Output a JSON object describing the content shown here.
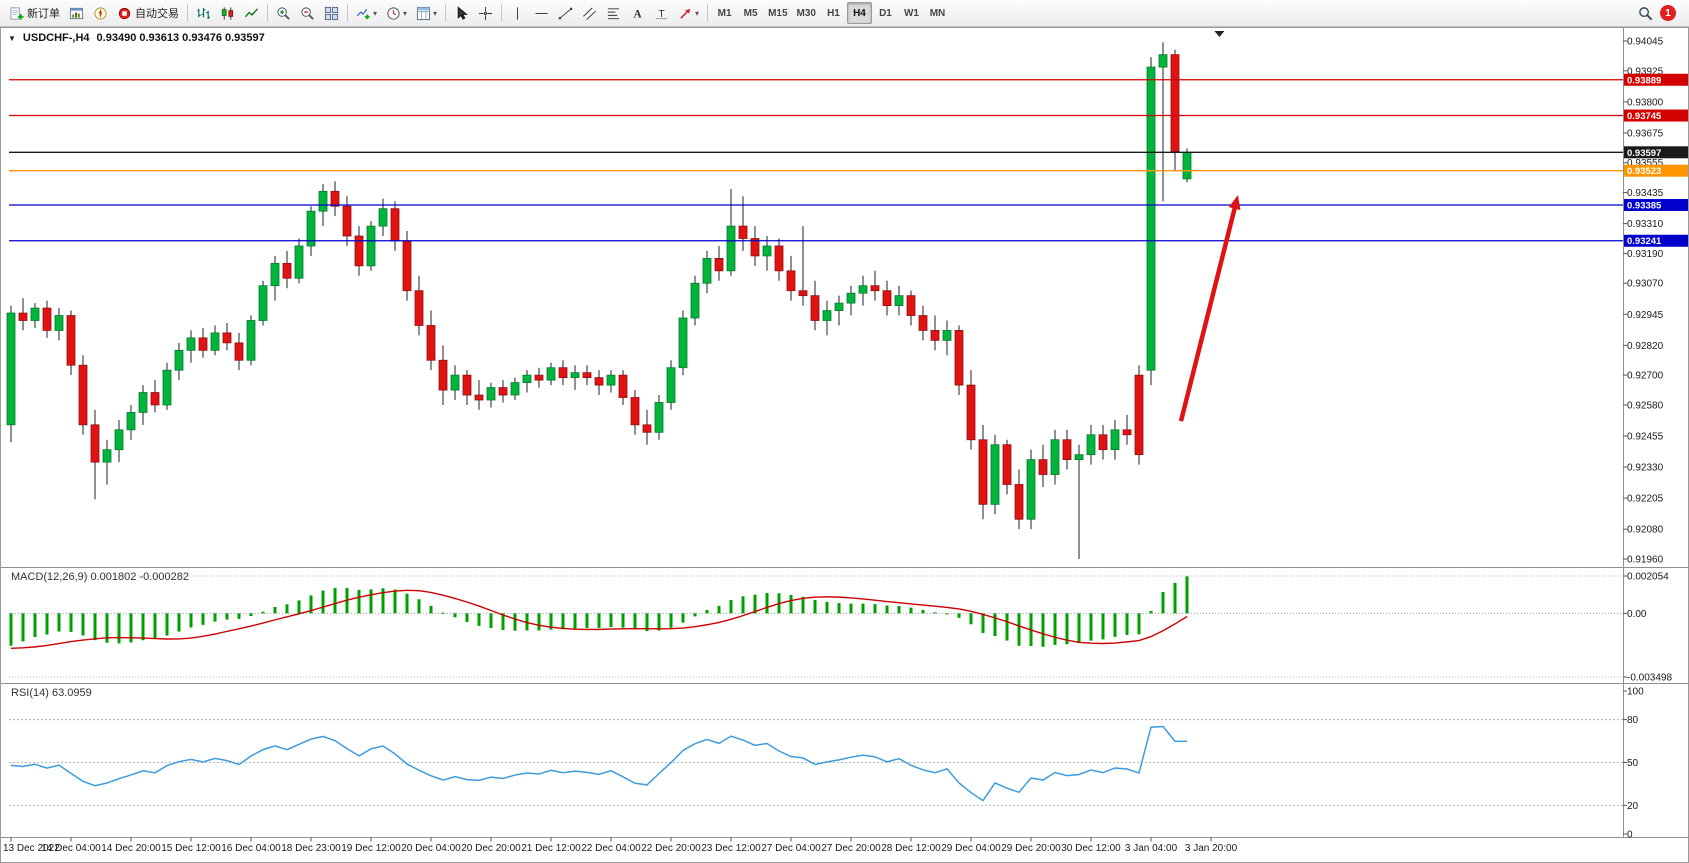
{
  "toolbar": {
    "items": [
      {
        "type": "button",
        "name": "new-order-button",
        "icon": "new-order-icon",
        "label": "新订单"
      },
      {
        "type": "button",
        "name": "charts-button",
        "icon": "charts-icon"
      },
      {
        "type": "button",
        "name": "navigator-button",
        "icon": "navigator-icon"
      },
      {
        "type": "button",
        "name": "autotrading-button",
        "icon": "autotrading-icon",
        "label": "自动交易"
      },
      {
        "type": "sep"
      },
      {
        "type": "button",
        "name": "bar-chart-button",
        "icon": "bar-chart-icon"
      },
      {
        "type": "button",
        "name": "candlestick-button",
        "icon": "candlestick-icon"
      },
      {
        "type": "button",
        "name": "line-chart-button",
        "icon": "line-chart-icon"
      },
      {
        "type": "sep"
      },
      {
        "type": "button",
        "name": "zoom-in-button",
        "icon": "zoom-in-icon"
      },
      {
        "type": "button",
        "name": "zoom-out-button",
        "icon": "zoom-out-icon"
      },
      {
        "type": "button",
        "name": "tile-windows-button",
        "icon": "tile-windows-icon"
      },
      {
        "type": "sep"
      },
      {
        "type": "button",
        "name": "indicators-button",
        "icon": "indicators-icon",
        "dropdown": true
      },
      {
        "type": "button",
        "name": "periods-button",
        "icon": "periods-icon",
        "dropdown": true
      },
      {
        "type": "button",
        "name": "templates-button",
        "icon": "templates-icon",
        "dropdown": true
      },
      {
        "type": "sep"
      },
      {
        "type": "button",
        "name": "cursor-button",
        "icon": "cursor-icon"
      },
      {
        "type": "button",
        "name": "crosshair-button",
        "icon": "crosshair-icon"
      },
      {
        "type": "sep"
      },
      {
        "type": "button",
        "name": "vertical-line-button",
        "icon": "vline-icon"
      },
      {
        "type": "button",
        "name": "horizontal-line-button",
        "icon": "hline-icon"
      },
      {
        "type": "button",
        "name": "trendline-button",
        "icon": "trendline-icon"
      },
      {
        "type": "button",
        "name": "channel-button",
        "icon": "channel-icon"
      },
      {
        "type": "button",
        "name": "fibonacci-button",
        "icon": "fibo-icon"
      },
      {
        "type": "button",
        "name": "text-button",
        "icon": "text-icon"
      },
      {
        "type": "button",
        "name": "label-button",
        "icon": "label-icon"
      },
      {
        "type": "button",
        "name": "arrows-button",
        "icon": "arrows-icon",
        "dropdown": true
      },
      {
        "type": "sep"
      }
    ],
    "timeframes": [
      "M1",
      "M5",
      "M15",
      "M30",
      "H1",
      "H4",
      "D1",
      "W1",
      "MN"
    ],
    "active_timeframe": "H4",
    "notification_count": "1"
  },
  "chart_data": {
    "type": "candlestick",
    "symbol": "USDCHF",
    "period": "H4",
    "title": "USDCHF-,H4",
    "ohlc_text": "0.93490 0.93613 0.93476 0.93597",
    "one_click_glyph": "▼",
    "bull_color": "#00b43c",
    "bear_color": "#e01212",
    "price_range": {
      "max": 0.94045,
      "min": 0.9196
    },
    "price_axis_labels": [
      "0.94045",
      "0.93925",
      "0.93800",
      "0.93675",
      "0.93555",
      "0.93435",
      "0.93310",
      "0.93190",
      "0.93070",
      "0.92945",
      "0.92820",
      "0.92700",
      "0.92580",
      "0.92455",
      "0.92330",
      "0.92205",
      "0.92080",
      "0.91960"
    ],
    "candles": [
      [
        0.925,
        0.9298,
        0.9243,
        0.9295
      ],
      [
        0.9295,
        0.9301,
        0.9288,
        0.9292
      ],
      [
        0.9292,
        0.9299,
        0.9289,
        0.9297
      ],
      [
        0.9297,
        0.93,
        0.9285,
        0.9288
      ],
      [
        0.9288,
        0.9297,
        0.9284,
        0.9294
      ],
      [
        0.9294,
        0.9296,
        0.927,
        0.9274
      ],
      [
        0.9274,
        0.9278,
        0.9246,
        0.925
      ],
      [
        0.925,
        0.9256,
        0.922,
        0.9235
      ],
      [
        0.9235,
        0.9244,
        0.9226,
        0.924
      ],
      [
        0.924,
        0.9252,
        0.9235,
        0.9248
      ],
      [
        0.9248,
        0.9258,
        0.9244,
        0.9255
      ],
      [
        0.9255,
        0.9266,
        0.925,
        0.9263
      ],
      [
        0.9263,
        0.9268,
        0.9255,
        0.9258
      ],
      [
        0.9258,
        0.9275,
        0.9256,
        0.9272
      ],
      [
        0.9272,
        0.9283,
        0.9268,
        0.928
      ],
      [
        0.928,
        0.9288,
        0.9275,
        0.9285
      ],
      [
        0.9285,
        0.9289,
        0.9277,
        0.928
      ],
      [
        0.928,
        0.929,
        0.9278,
        0.9287
      ],
      [
        0.9287,
        0.9291,
        0.928,
        0.9283
      ],
      [
        0.9283,
        0.9287,
        0.9272,
        0.9276
      ],
      [
        0.9276,
        0.9294,
        0.9274,
        0.9292
      ],
      [
        0.9292,
        0.9308,
        0.929,
        0.9306
      ],
      [
        0.9306,
        0.9318,
        0.93,
        0.9315
      ],
      [
        0.9315,
        0.932,
        0.9305,
        0.9309
      ],
      [
        0.9309,
        0.9325,
        0.9307,
        0.9322
      ],
      [
        0.9322,
        0.9338,
        0.9318,
        0.9336
      ],
      [
        0.9336,
        0.9347,
        0.933,
        0.9344
      ],
      [
        0.9344,
        0.9348,
        0.9334,
        0.9338
      ],
      [
        0.9338,
        0.9342,
        0.9322,
        0.9326
      ],
      [
        0.9326,
        0.933,
        0.931,
        0.9314
      ],
      [
        0.9314,
        0.9332,
        0.9312,
        0.933
      ],
      [
        0.933,
        0.9341,
        0.9326,
        0.9337
      ],
      [
        0.9337,
        0.934,
        0.932,
        0.9324
      ],
      [
        0.9324,
        0.9328,
        0.93,
        0.9304
      ],
      [
        0.9304,
        0.931,
        0.9286,
        0.929
      ],
      [
        0.929,
        0.9296,
        0.9272,
        0.9276
      ],
      [
        0.9276,
        0.9282,
        0.9258,
        0.9264
      ],
      [
        0.9264,
        0.9274,
        0.926,
        0.927
      ],
      [
        0.927,
        0.9272,
        0.9258,
        0.9262
      ],
      [
        0.9262,
        0.9268,
        0.9256,
        0.926
      ],
      [
        0.926,
        0.9267,
        0.9257,
        0.9265
      ],
      [
        0.9265,
        0.9268,
        0.9259,
        0.9262
      ],
      [
        0.9262,
        0.9269,
        0.926,
        0.9267
      ],
      [
        0.9267,
        0.9272,
        0.9263,
        0.927
      ],
      [
        0.927,
        0.9273,
        0.9265,
        0.9268
      ],
      [
        0.9268,
        0.9275,
        0.9266,
        0.9273
      ],
      [
        0.9273,
        0.9276,
        0.9266,
        0.9269
      ],
      [
        0.9269,
        0.9274,
        0.9264,
        0.9271
      ],
      [
        0.9271,
        0.9274,
        0.9266,
        0.9269
      ],
      [
        0.9269,
        0.9272,
        0.9262,
        0.9266
      ],
      [
        0.9266,
        0.9272,
        0.9263,
        0.927
      ],
      [
        0.927,
        0.9272,
        0.9258,
        0.9261
      ],
      [
        0.9261,
        0.9264,
        0.9246,
        0.925
      ],
      [
        0.925,
        0.9256,
        0.9242,
        0.9247
      ],
      [
        0.9247,
        0.9262,
        0.9244,
        0.9259
      ],
      [
        0.9259,
        0.9276,
        0.9256,
        0.9273
      ],
      [
        0.9273,
        0.9296,
        0.927,
        0.9293
      ],
      [
        0.9293,
        0.931,
        0.929,
        0.9307
      ],
      [
        0.9307,
        0.932,
        0.9303,
        0.9317
      ],
      [
        0.9317,
        0.9322,
        0.9308,
        0.9312
      ],
      [
        0.9312,
        0.9345,
        0.931,
        0.933
      ],
      [
        0.933,
        0.9342,
        0.932,
        0.9325
      ],
      [
        0.9325,
        0.933,
        0.9314,
        0.9318
      ],
      [
        0.9318,
        0.9326,
        0.9312,
        0.9322
      ],
      [
        0.9322,
        0.9325,
        0.9308,
        0.9312
      ],
      [
        0.9312,
        0.9318,
        0.93,
        0.9304
      ],
      [
        0.9304,
        0.933,
        0.9298,
        0.9302
      ],
      [
        0.9302,
        0.9308,
        0.9288,
        0.9292
      ],
      [
        0.9292,
        0.93,
        0.9286,
        0.9296
      ],
      [
        0.9296,
        0.9302,
        0.929,
        0.9299
      ],
      [
        0.9299,
        0.9306,
        0.9294,
        0.9303
      ],
      [
        0.9303,
        0.931,
        0.9298,
        0.9306
      ],
      [
        0.9306,
        0.9312,
        0.93,
        0.9304
      ],
      [
        0.9304,
        0.9308,
        0.9294,
        0.9298
      ],
      [
        0.9298,
        0.9306,
        0.9294,
        0.9302
      ],
      [
        0.9302,
        0.9304,
        0.929,
        0.9294
      ],
      [
        0.9294,
        0.9298,
        0.9284,
        0.9288
      ],
      [
        0.9288,
        0.9294,
        0.928,
        0.9284
      ],
      [
        0.9284,
        0.9292,
        0.9278,
        0.9288
      ],
      [
        0.9288,
        0.929,
        0.9262,
        0.9266
      ],
      [
        0.9266,
        0.9272,
        0.924,
        0.9244
      ],
      [
        0.9244,
        0.925,
        0.9212,
        0.9218
      ],
      [
        0.9218,
        0.9246,
        0.9214,
        0.9242
      ],
      [
        0.9242,
        0.9244,
        0.9222,
        0.9226
      ],
      [
        0.9226,
        0.9232,
        0.9208,
        0.9212
      ],
      [
        0.9212,
        0.924,
        0.9208,
        0.9236
      ],
      [
        0.9236,
        0.9242,
        0.9225,
        0.923
      ],
      [
        0.923,
        0.9248,
        0.9226,
        0.9244
      ],
      [
        0.9244,
        0.9248,
        0.9232,
        0.9236
      ],
      [
        0.9236,
        0.9242,
        0.9196,
        0.9238
      ],
      [
        0.9238,
        0.925,
        0.9234,
        0.9246
      ],
      [
        0.9246,
        0.925,
        0.9236,
        0.924
      ],
      [
        0.924,
        0.9252,
        0.9236,
        0.9248
      ],
      [
        0.9248,
        0.9254,
        0.9242,
        0.9246
      ],
      [
        0.927,
        0.9274,
        0.9234,
        0.9238
      ],
      [
        0.9272,
        0.9398,
        0.9266,
        0.9394
      ],
      [
        0.9394,
        0.9404,
        0.934,
        0.9399
      ],
      [
        0.9399,
        0.9401,
        0.9352,
        0.936
      ],
      [
        0.9349,
        0.93613,
        0.93476,
        0.93597
      ]
    ],
    "time_labels": [
      {
        "text": "13 Dec 2022",
        "i": 0
      },
      {
        "text": "14 Dec 04:00",
        "i": 5
      },
      {
        "text": "14 Dec 20:00",
        "i": 10
      },
      {
        "text": "15 Dec 12:00",
        "i": 15
      },
      {
        "text": "16 Dec 04:00",
        "i": 20
      },
      {
        "text": "18 Dec 23:00",
        "i": 25
      },
      {
        "text": "19 Dec 12:00",
        "i": 30
      },
      {
        "text": "20 Dec 04:00",
        "i": 35
      },
      {
        "text": "20 Dec 20:00",
        "i": 40
      },
      {
        "text": "21 Dec 12:00",
        "i": 45
      },
      {
        "text": "22 Dec 04:00",
        "i": 50
      },
      {
        "text": "22 Dec 20:00",
        "i": 55
      },
      {
        "text": "23 Dec 12:00",
        "i": 60
      },
      {
        "text": "27 Dec 04:00",
        "i": 65
      },
      {
        "text": "27 Dec 20:00",
        "i": 70
      },
      {
        "text": "28 Dec 12:00",
        "i": 75
      },
      {
        "text": "29 Dec 04:00",
        "i": 80
      },
      {
        "text": "29 Dec 20:00",
        "i": 85
      },
      {
        "text": "30 Dec 12:00",
        "i": 90
      },
      {
        "text": "3 Jan 04:00",
        "i": 95
      },
      {
        "text": "3 Jan 20:00",
        "i": 100
      }
    ],
    "horizontal_lines": [
      {
        "price": 0.93889,
        "color": "#d40000",
        "tag": "0.93889"
      },
      {
        "price": 0.93745,
        "color": "#d40000",
        "tag": "0.93745"
      },
      {
        "price": 0.93597,
        "color": "#1a1a1a",
        "tag": "0.93597"
      },
      {
        "price": 0.93523,
        "color": "#ff9500",
        "tag": "0.93523"
      },
      {
        "price": 0.93385,
        "color": "#0000cc",
        "tag": "0.93385"
      },
      {
        "price": 0.93241,
        "color": "#0000cc",
        "tag": "0.93241"
      }
    ],
    "arrow": {
      "from_index": 97.5,
      "from_price": 0.92515,
      "to_index": 102.25,
      "to_price": 0.93425,
      "color": "#e01212"
    },
    "shift_marker_index": 100.7,
    "indicators": [
      {
        "name": "MACD",
        "label": "MACD(12,26,9) 0.001802 -0.000282",
        "params": [
          12,
          26,
          9
        ],
        "values_display": [
          "0.001802",
          "-0.000282"
        ],
        "axis_labels": [
          "0.002054",
          "0.00",
          "-0.003498"
        ],
        "range": {
          "max": 0.002054,
          "min": -0.003498
        },
        "histogram_color": "#00a000",
        "signal_color": "#cc0000"
      },
      {
        "name": "RSI",
        "label": "RSI(14) 63.0959",
        "params": [
          14
        ],
        "value_display": "63.0959",
        "axis_labels": [
          "100",
          "80",
          "50",
          "20",
          "0"
        ],
        "levels": [
          80,
          50,
          20
        ],
        "line_color": "#3e9bdd"
      }
    ]
  }
}
